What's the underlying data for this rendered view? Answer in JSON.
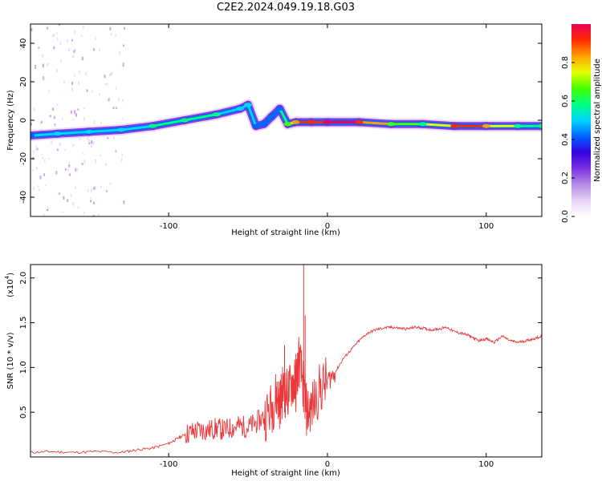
{
  "title": "C2E2.2024.049.19.18.G03",
  "colors": {
    "spectrogram_scale": [
      "#ffffff",
      "#e6d3f7",
      "#b58ae6",
      "#7b2fe0",
      "#3500e0",
      "#0066ff",
      "#00d5ff",
      "#00ff80",
      "#48ff00",
      "#e6ff00",
      "#ffa000",
      "#ff2a00",
      "#e8005a"
    ],
    "snr_line": "#e8383a"
  },
  "chart_data": [
    {
      "type": "heatmap",
      "name_printed": "",
      "xlabel": "Height of straight line (km)",
      "ylabel": "Frequency (Hz)",
      "xlim": [
        -187,
        135
      ],
      "ylim": [
        -50,
        50
      ],
      "xticks": [
        -100,
        0,
        100
      ],
      "yticks": [
        -40,
        -20,
        0,
        20,
        40
      ],
      "colorbar": {
        "label": "Normalized spectral amplitude",
        "range": [
          0,
          1
        ],
        "ticks": [
          "0.0",
          "0.2",
          "0.4",
          "0.6",
          "0.8"
        ]
      },
      "ridge": {
        "description_note": "",
        "x": [
          -187,
          -170,
          -150,
          -130,
          -110,
          -90,
          -70,
          -55,
          -50,
          -45,
          -40,
          -35,
          -30,
          -25,
          -20,
          -10,
          0,
          20,
          40,
          60,
          80,
          100,
          120,
          135
        ],
        "freq": [
          -8,
          -7,
          -6,
          -5,
          -3,
          0,
          3,
          6,
          8,
          -3,
          -2,
          2,
          6,
          -2,
          -1,
          -1,
          -1,
          -1,
          -2,
          -2,
          -3,
          -3,
          -3,
          -3
        ],
        "amplitude": [
          0.45,
          0.5,
          0.5,
          0.5,
          0.55,
          0.55,
          0.55,
          0.5,
          0.5,
          0.45,
          0.45,
          0.45,
          0.45,
          0.7,
          0.85,
          0.9,
          1.0,
          0.95,
          0.7,
          0.55,
          0.9,
          0.85,
          0.6,
          0.55
        ]
      }
    },
    {
      "type": "line",
      "xlabel": "Height of straight line (km)",
      "ylabel": "SNR (10 * v/v)",
      "y_multiplier": "(x10",
      "y_multiplier_exp": "4",
      "y_multiplier_close": ")",
      "xlim": [
        -187,
        135
      ],
      "ylim": [
        0,
        2.15
      ],
      "xticks": [
        -100,
        0,
        100
      ],
      "yticks": [
        "0.5",
        "1.0",
        "1.5",
        "2.0"
      ],
      "series": [
        {
          "x": [
            -187,
            -175,
            -160,
            -145,
            -130,
            -120,
            -110,
            -100,
            -95,
            -90,
            -85,
            -80,
            -75,
            -70,
            -65,
            -60,
            -55,
            -50,
            -45,
            -40,
            -35,
            -32,
            -30,
            -28,
            -25,
            -22,
            -20,
            -18,
            -15,
            -13,
            -10,
            -5,
            0,
            5,
            10,
            15,
            20,
            25,
            30,
            35,
            40,
            45,
            50,
            55,
            60,
            65,
            70,
            75,
            80,
            85,
            90,
            95,
            100,
            105,
            110,
            115,
            120,
            125,
            130,
            135
          ],
          "y": [
            0.05,
            0.06,
            0.05,
            0.06,
            0.05,
            0.08,
            0.1,
            0.15,
            0.2,
            0.25,
            0.28,
            0.3,
            0.3,
            0.32,
            0.3,
            0.33,
            0.35,
            0.33,
            0.38,
            0.45,
            0.55,
            0.7,
            0.6,
            0.75,
            0.7,
            0.85,
            0.8,
            1.1,
            0.8,
            0.5,
            0.55,
            0.75,
            0.85,
            0.95,
            1.1,
            1.2,
            1.3,
            1.38,
            1.42,
            1.44,
            1.45,
            1.44,
            1.43,
            1.45,
            1.44,
            1.42,
            1.43,
            1.45,
            1.4,
            1.38,
            1.35,
            1.3,
            1.32,
            1.28,
            1.35,
            1.3,
            1.28,
            1.3,
            1.32,
            1.35
          ]
        }
      ],
      "spikes": [
        {
          "x": -15,
          "y": 2.15
        },
        {
          "x": -14,
          "y": 1.58
        },
        {
          "x": -27,
          "y": 1.25
        },
        {
          "x": -20,
          "y": 1.15
        }
      ]
    }
  ]
}
